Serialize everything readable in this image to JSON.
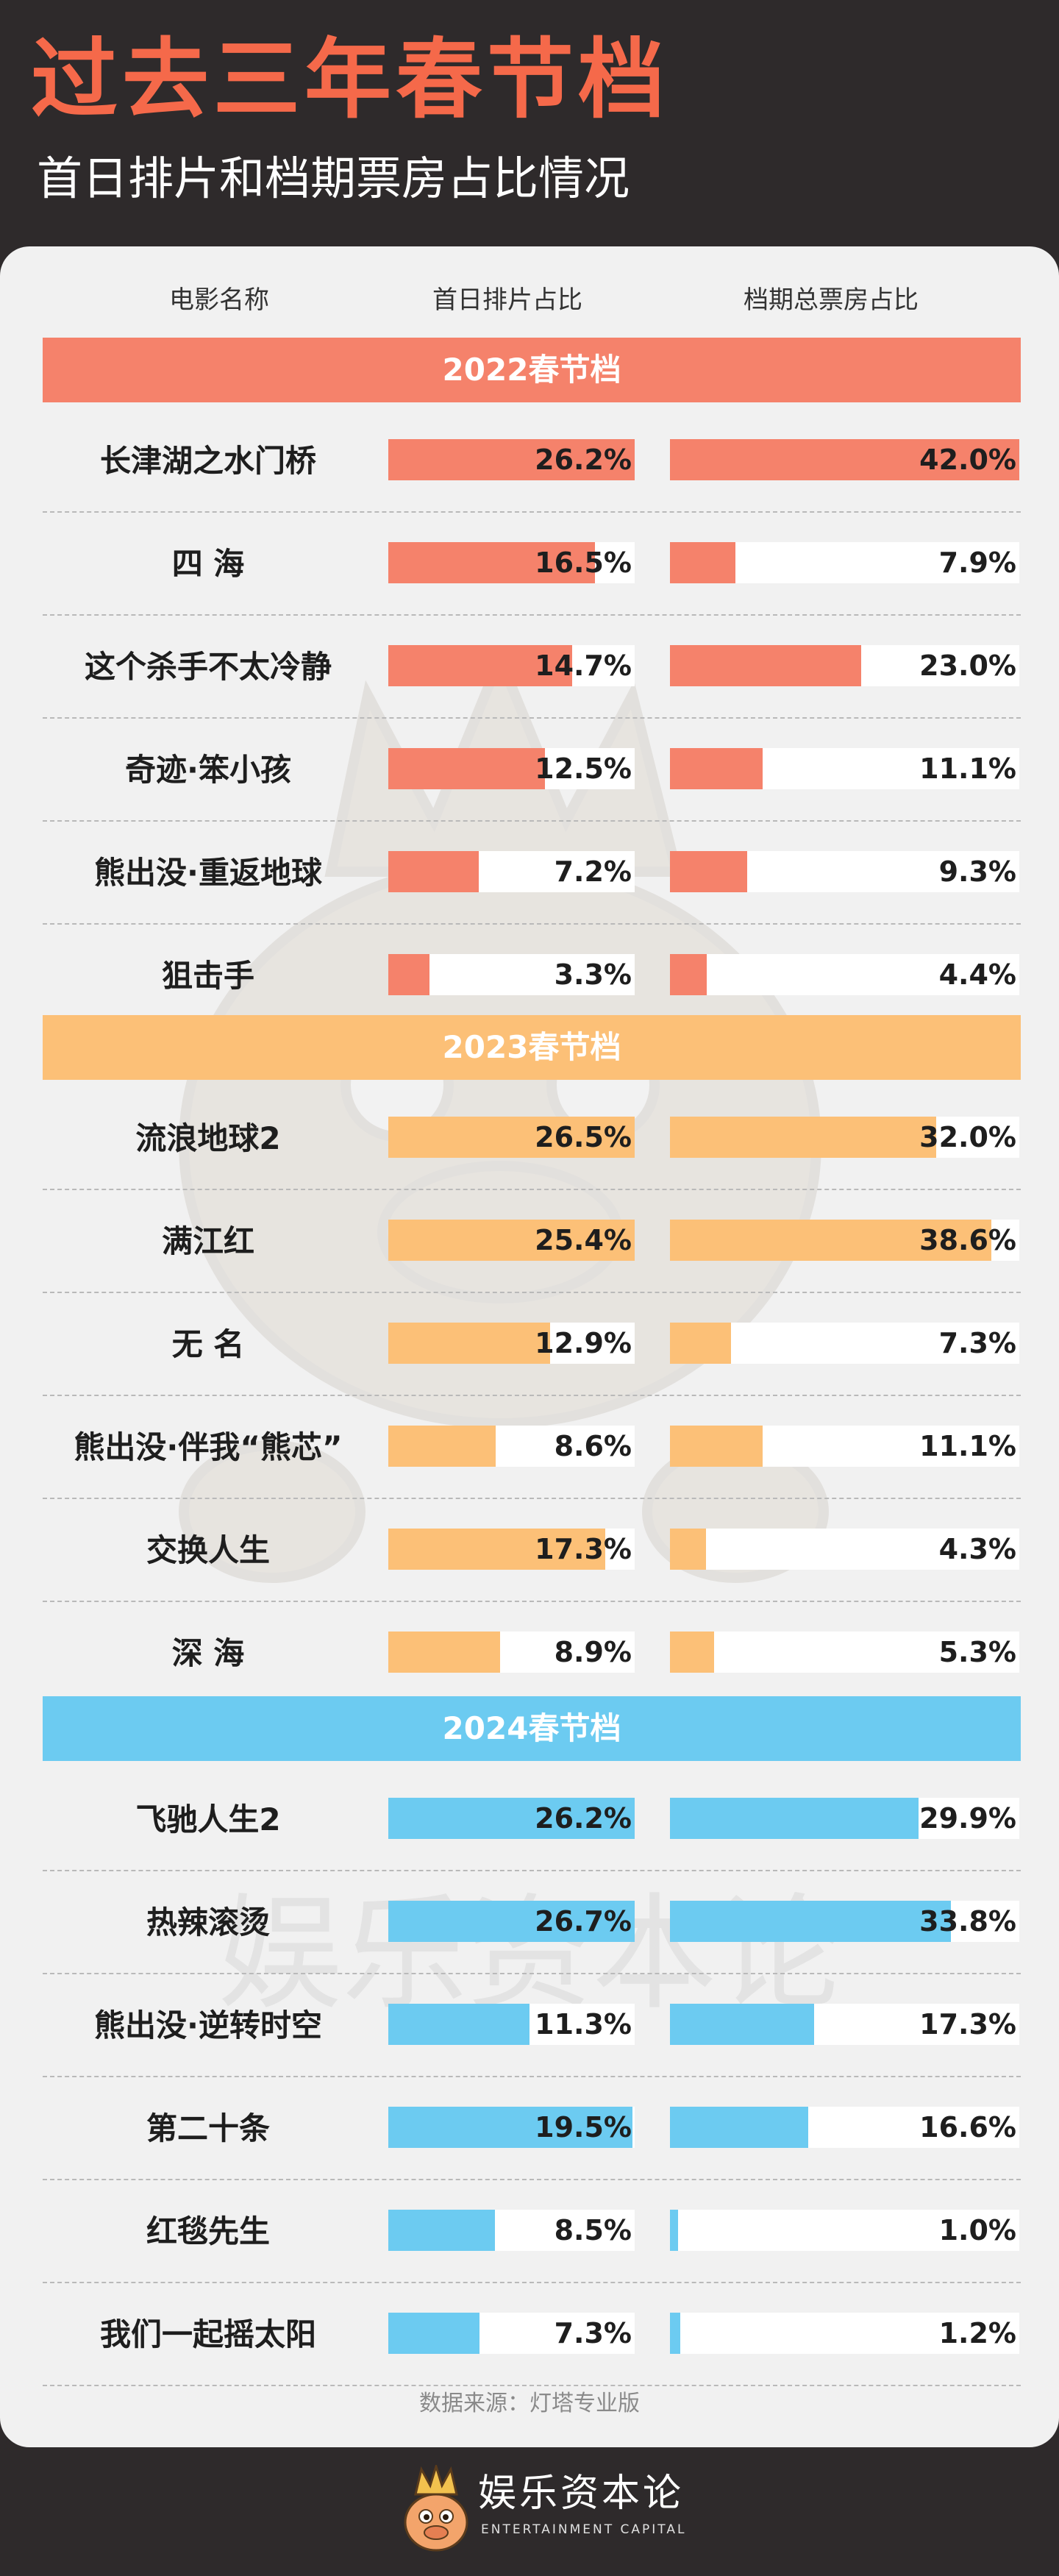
{
  "title": "过去三年春节档",
  "subtitle": "首日排片和档期票房占比情况",
  "columns": [
    "电影名称",
    "首日排片占比",
    "档期总票房占比"
  ],
  "source": "数据来源：灯塔专业版",
  "watermark_text": "娱乐资本论",
  "logo": {
    "name": "娱乐资本论",
    "sub": "ENTERTAINMENT CAPITAL"
  },
  "colors": {
    "2022": "#f5826b",
    "2023": "#fcc077",
    "2024": "#6ccbf1",
    "title": "#f5694a"
  },
  "chart_data": {
    "type": "bar",
    "series": [
      {
        "name": "首日排片占比"
      },
      {
        "name": "档期总票房占比"
      }
    ],
    "groups": [
      {
        "name": "2022春节档",
        "color": "#f5826b",
        "movies": [
          {
            "name": "长津湖之水门桥",
            "day1": 26.2,
            "total": 42.0,
            "day1_label": "26.2%",
            "total_label": "42.0%"
          },
          {
            "name": "四 海",
            "day1": 16.5,
            "total": 7.9,
            "day1_label": "16.5%",
            "total_label": "7.9%"
          },
          {
            "name": "这个杀手不太冷静",
            "day1": 14.7,
            "total": 23.0,
            "day1_label": "14.7%",
            "total_label": "23.0%"
          },
          {
            "name": "奇迹·笨小孩",
            "day1": 12.5,
            "total": 11.1,
            "day1_label": "12.5%",
            "total_label": "11.1%"
          },
          {
            "name": "熊出没·重返地球",
            "day1": 7.2,
            "total": 9.3,
            "day1_label": "7.2%",
            "total_label": "9.3%"
          },
          {
            "name": "狙击手",
            "day1": 3.3,
            "total": 4.4,
            "day1_label": "3.3%",
            "total_label": "4.4%"
          }
        ]
      },
      {
        "name": "2023春节档",
        "color": "#fcc077",
        "movies": [
          {
            "name": "流浪地球2",
            "day1": 26.5,
            "total": 32.0,
            "day1_label": "26.5%",
            "total_label": "32.0%"
          },
          {
            "name": "满江红",
            "day1": 25.4,
            "total": 38.6,
            "day1_label": "25.4%",
            "total_label": "38.6%"
          },
          {
            "name": "无 名",
            "day1": 12.9,
            "total": 7.3,
            "day1_label": "12.9%",
            "total_label": "7.3%"
          },
          {
            "name": "熊出没·伴我“熊芯”",
            "day1": 8.6,
            "total": 11.1,
            "day1_label": "8.6%",
            "total_label": "11.1%"
          },
          {
            "name": "交换人生",
            "day1": 17.3,
            "total": 4.3,
            "day1_label": "17.3%",
            "total_label": "4.3%"
          },
          {
            "name": "深 海",
            "day1": 8.9,
            "total": 5.3,
            "day1_label": "8.9%",
            "total_label": "5.3%"
          }
        ]
      },
      {
        "name": "2024春节档",
        "color": "#6ccbf1",
        "movies": [
          {
            "name": "飞驰人生2",
            "day1": 26.2,
            "total": 29.9,
            "day1_label": "26.2%",
            "total_label": "29.9%"
          },
          {
            "name": "热辣滚烫",
            "day1": 26.7,
            "total": 33.8,
            "day1_label": "26.7%",
            "total_label": "33.8%"
          },
          {
            "name": "熊出没·逆转时空",
            "day1": 11.3,
            "total": 17.3,
            "day1_label": "11.3%",
            "total_label": "17.3%"
          },
          {
            "name": "第二十条",
            "day1": 19.5,
            "total": 16.6,
            "day1_label": "19.5%",
            "total_label": "16.6%"
          },
          {
            "name": "红毯先生",
            "day1": 8.5,
            "total": 1.0,
            "day1_label": "8.5%",
            "total_label": "1.0%"
          },
          {
            "name": "我们一起摇太阳",
            "day1": 7.3,
            "total": 1.2,
            "day1_label": "7.3%",
            "total_label": "1.2%"
          }
        ]
      }
    ]
  }
}
